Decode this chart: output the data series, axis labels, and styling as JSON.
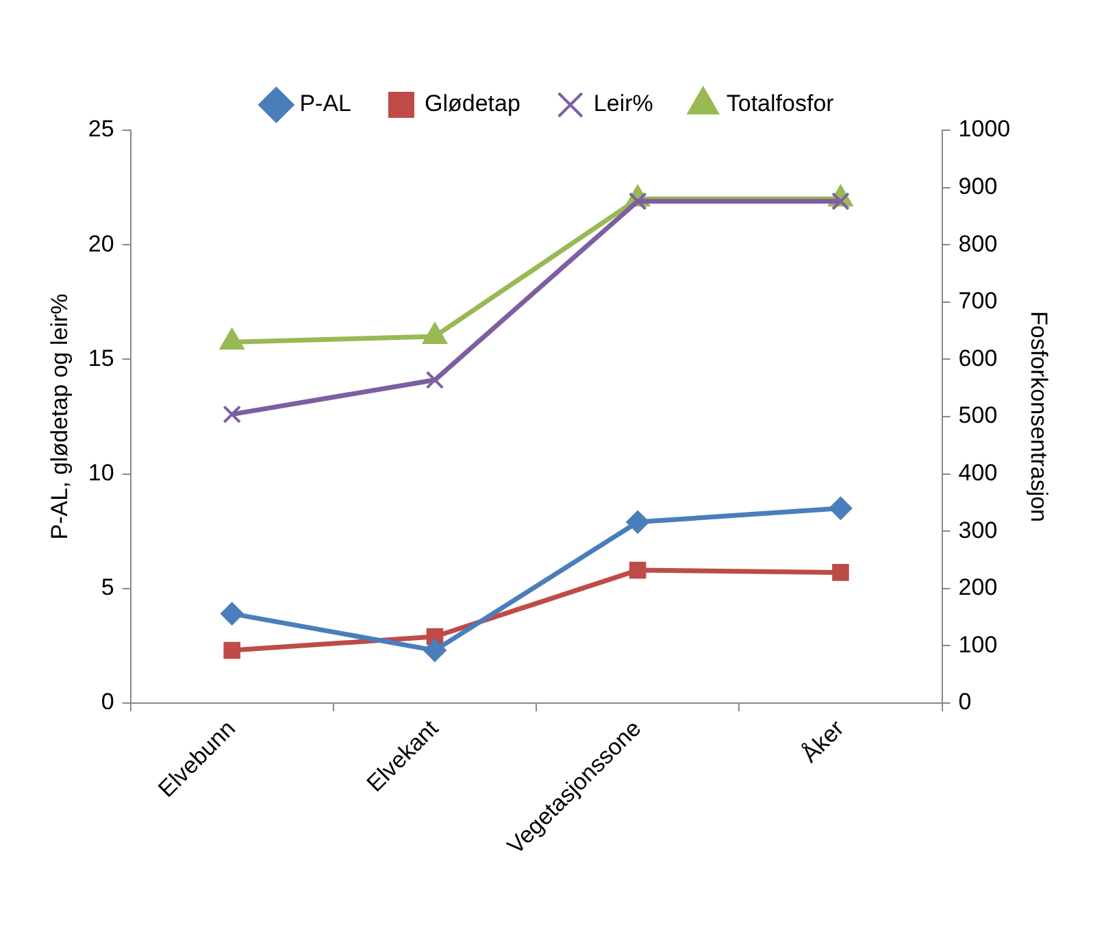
{
  "chart_data": {
    "type": "line",
    "ylabel": "P-AL, glødetap og leir%",
    "y2label": "Fosforkonsentrasjon",
    "categories": [
      "Elvebunn",
      "Elvekant",
      "Vegetasjonssone",
      "Åker"
    ],
    "series": [
      {
        "name": "P-AL",
        "color": "#4a7ebb",
        "marker": "diamond",
        "values": [
          3.9,
          2.3,
          7.9,
          8.5
        ]
      },
      {
        "name": "Glødetap",
        "color": "#be4b48",
        "marker": "square",
        "values": [
          2.3,
          2.9,
          5.8,
          5.7
        ]
      },
      {
        "name": "Leir%",
        "color": "#7d5fa0",
        "marker": "cross",
        "values": [
          12.6,
          14.1,
          21.9,
          21.9
        ]
      },
      {
        "name": "Totalfosfor",
        "color": "#98b954",
        "marker": "triangle",
        "axis": "y2",
        "values": [
          630,
          640,
          880,
          880
        ]
      }
    ],
    "ylim": [
      0,
      25
    ],
    "yticks": [
      0,
      5,
      10,
      15,
      20,
      25
    ],
    "y2lim": [
      0,
      1000
    ],
    "y2ticks": [
      0,
      100,
      200,
      300,
      400,
      500,
      600,
      700,
      800,
      900,
      1000
    ],
    "grid": false,
    "legend": "top",
    "line_style": "solid"
  }
}
